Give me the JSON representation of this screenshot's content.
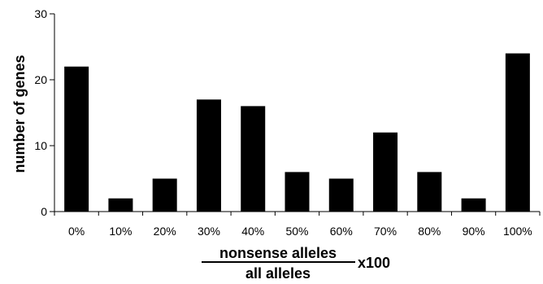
{
  "chart_data": {
    "type": "bar",
    "categories": [
      "0%",
      "10%",
      "20%",
      "30%",
      "40%",
      "50%",
      "60%",
      "70%",
      "80%",
      "90%",
      "100%"
    ],
    "values": [
      22,
      2,
      5,
      17,
      16,
      6,
      5,
      12,
      6,
      2,
      24
    ],
    "ylabel": "number of genes",
    "ylim": [
      0,
      30
    ],
    "yticks": [
      0,
      10,
      20,
      30
    ],
    "xlabel": {
      "numerator": "nonsense alleles",
      "denominator": "all alleles",
      "multiplier": "x100"
    },
    "bar_color": "#000000",
    "grid": false,
    "legend": "none"
  }
}
